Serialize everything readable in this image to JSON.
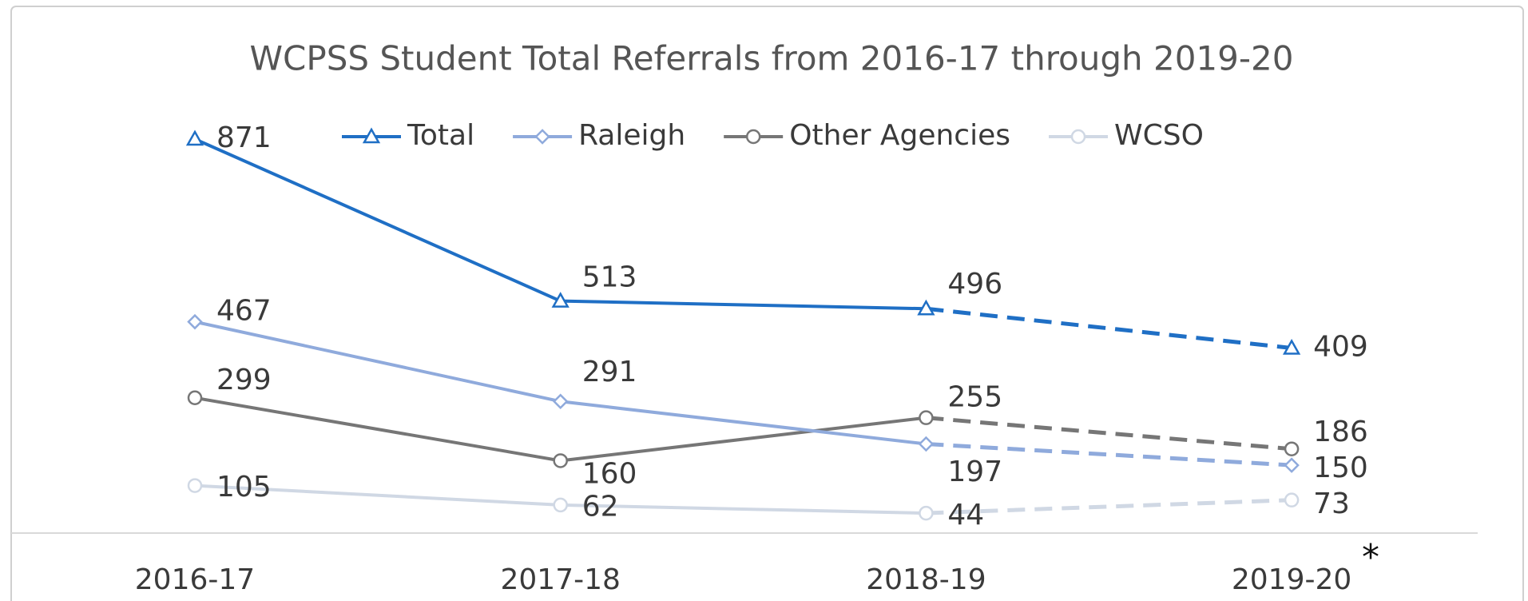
{
  "chart_data": {
    "type": "line",
    "title": "WCPSS Student Total Referrals from 2016-17 through 2019-20",
    "categories": [
      "2016-17",
      "2017-18",
      "2018-19",
      "2019-20"
    ],
    "annotation": "*",
    "ylim": [
      0,
      1000
    ],
    "dashed_from": 2,
    "legend": "top",
    "series": [
      {
        "name": "Total",
        "color": "#1f6fc5",
        "marker": "triangle",
        "values": [
          871,
          513,
          496,
          409
        ]
      },
      {
        "name": "Raleigh",
        "color": "#8faadc",
        "marker": "diamond",
        "values": [
          467,
          291,
          197,
          150
        ]
      },
      {
        "name": "Other Agencies",
        "color": "#767676",
        "marker": "circle",
        "values": [
          299,
          160,
          255,
          186
        ]
      },
      {
        "name": "WCSO",
        "color": "#d0d8e4",
        "marker": "circle",
        "values": [
          105,
          62,
          44,
          73
        ]
      }
    ]
  }
}
